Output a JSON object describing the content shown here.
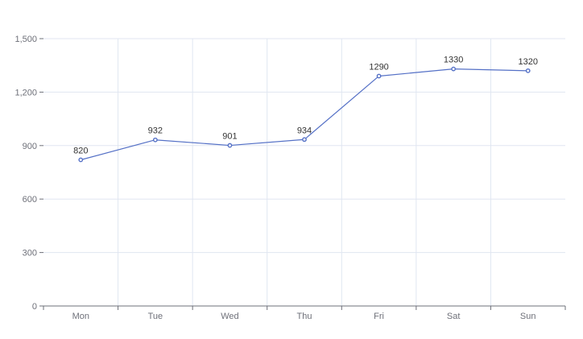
{
  "chart_data": {
    "type": "line",
    "categories": [
      "Mon",
      "Tue",
      "Wed",
      "Thu",
      "Fri",
      "Sat",
      "Sun"
    ],
    "series": [
      {
        "values": [
          820,
          932,
          901,
          934,
          1290,
          1330,
          1320
        ],
        "color": "#5470c6"
      }
    ],
    "ylim": [
      0,
      1500
    ],
    "yticks": [
      0,
      300,
      600,
      900,
      1200,
      1500
    ],
    "ytick_labels": [
      "0",
      "300",
      "600",
      "900",
      "1,200",
      "1,500"
    ],
    "title": "",
    "xlabel": "",
    "ylabel": "",
    "grid": true,
    "data_labels": true
  }
}
